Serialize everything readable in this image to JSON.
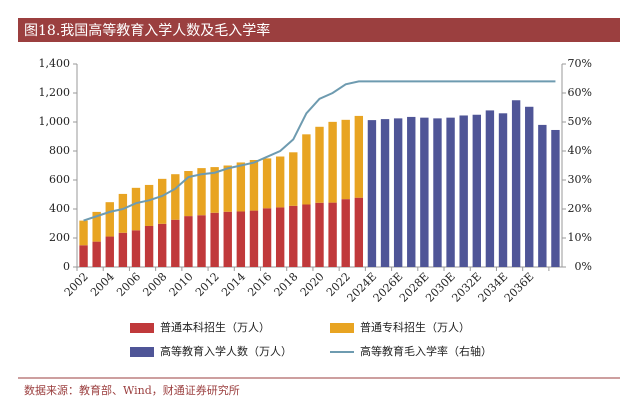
{
  "chart_data": {
    "type": "bar",
    "title": "图18.我国高等教育入学人数及毛入学率",
    "source": "数据来源：教育部、Wind，财通证券研究所",
    "categories": [
      "2002",
      null,
      "2004",
      null,
      "2006",
      null,
      "2008",
      null,
      "2010",
      null,
      "2012",
      null,
      "2014",
      null,
      "2016",
      null,
      "2018",
      null,
      "2020",
      null,
      "2022",
      null,
      "2024E",
      null,
      "2026E",
      null,
      "2028E",
      null,
      "2030E",
      null,
      "2032E",
      null,
      "2034E",
      null,
      "2036E",
      null,
      null
    ],
    "series": [
      {
        "name": "普通本科招生（万人）",
        "type": "bar",
        "color": "#c0393b",
        "values": [
          150,
          175,
          210,
          236,
          253,
          283,
          298,
          326,
          351,
          357,
          374,
          381,
          383,
          389,
          405,
          411,
          422,
          431,
          443,
          444,
          468,
          478,
          null,
          null,
          null,
          null,
          null,
          null,
          null,
          null,
          null,
          null,
          null,
          null,
          null,
          null,
          null
        ]
      },
      {
        "name": "普通专科招生（万人）",
        "type": "bar",
        "color": "#e8a422",
        "values": [
          170,
          205,
          237,
          268,
          293,
          283,
          310,
          314,
          311,
          325,
          315,
          319,
          338,
          349,
          344,
          351,
          369,
          484,
          524,
          557,
          547,
          564,
          null,
          null,
          null,
          null,
          null,
          null,
          null,
          null,
          null,
          null,
          null,
          null,
          null,
          null,
          null
        ]
      },
      {
        "name": "高等教育入学人数（万人）",
        "type": "bar",
        "color": "#4f5597",
        "values": [
          null,
          null,
          null,
          null,
          null,
          null,
          null,
          null,
          null,
          null,
          null,
          null,
          null,
          null,
          null,
          null,
          null,
          null,
          null,
          null,
          null,
          null,
          1013,
          1020,
          1025,
          1035,
          1030,
          1025,
          1030,
          1045,
          1050,
          1080,
          1060,
          1150,
          1105,
          980,
          945
        ]
      },
      {
        "name": "高等教育毛入学率（右轴）",
        "type": "line",
        "axis": "y2",
        "color": "#6e9bb0",
        "values": [
          16,
          17.5,
          19,
          20,
          22,
          23,
          24.5,
          27,
          31,
          32,
          32.5,
          34,
          35,
          36,
          38,
          40,
          44,
          53,
          58,
          60,
          63,
          64,
          64,
          64,
          64,
          64,
          64,
          64,
          64,
          64,
          64,
          64,
          64,
          64,
          64,
          64,
          64
        ]
      }
    ],
    "ylim": [
      0,
      1400
    ],
    "yticks": [
      0,
      200,
      400,
      600,
      800,
      {
        "value": 1000,
        "label": "1,000"
      },
      {
        "value": 1200,
        "label": "1,200"
      },
      {
        "value": 1400,
        "label": "1,400"
      }
    ],
    "y2lim": [
      0,
      70
    ],
    "y2ticks": [
      {
        "value": 0,
        "label": "0%"
      },
      {
        "value": 10,
        "label": "10%"
      },
      {
        "value": 20,
        "label": "20%"
      },
      {
        "value": 30,
        "label": "30%"
      },
      {
        "value": 40,
        "label": "40%"
      },
      {
        "value": 50,
        "label": "50%"
      },
      {
        "value": 60,
        "label": "60%"
      },
      {
        "value": 70,
        "label": "70%"
      }
    ],
    "grid": false
  }
}
